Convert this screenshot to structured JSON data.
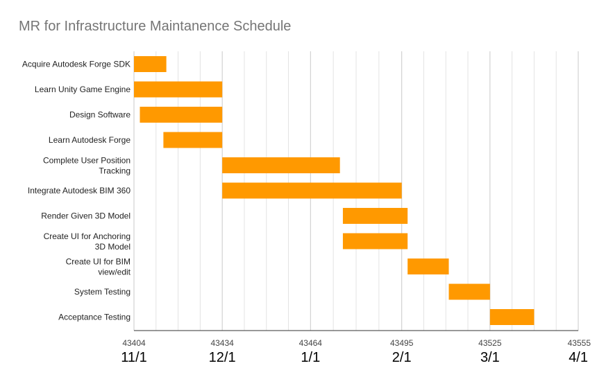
{
  "chart_data": {
    "type": "gantt",
    "title": "MR for Infrastructure Maintanence Schedule",
    "xlim": [
      43404,
      43555
    ],
    "major_ticks": [
      {
        "value": 43404,
        "serial_label": "43404",
        "date_label": "11/1"
      },
      {
        "value": 43434,
        "serial_label": "43434",
        "date_label": "12/1"
      },
      {
        "value": 43464,
        "serial_label": "43464",
        "date_label": "1/1"
      },
      {
        "value": 43495,
        "serial_label": "43495",
        "date_label": "2/1"
      },
      {
        "value": 43525,
        "serial_label": "43525",
        "date_label": "3/1"
      },
      {
        "value": 43555,
        "serial_label": "43555",
        "date_label": "4/1"
      }
    ],
    "minor_gridlines": [
      43411.5,
      43419,
      43426.5,
      43441.5,
      43449,
      43456.5,
      43471.75,
      43479.5,
      43487.25,
      43502.5,
      43510,
      43517.5,
      43532.5,
      43540,
      43547.5
    ],
    "bar_color": "#ff9900",
    "tasks": [
      {
        "name": "Acquire Autodesk Forge SDK",
        "start": 43404,
        "end": 43415
      },
      {
        "name": "Learn Unity Game Engine",
        "start": 43404,
        "end": 43434
      },
      {
        "name": "Design Software",
        "start": 43406,
        "end": 43434
      },
      {
        "name": "Learn Autodesk Forge",
        "start": 43414,
        "end": 43434
      },
      {
        "name": "Complete User Position Tracking",
        "start": 43434,
        "end": 43474
      },
      {
        "name": "Integrate Autodesk BIM 360",
        "start": 43434,
        "end": 43495
      },
      {
        "name": "Render Given 3D Model",
        "start": 43475,
        "end": 43497
      },
      {
        "name": "Create UI for Anchoring 3D Model",
        "start": 43475,
        "end": 43497
      },
      {
        "name": "Create UI for BIM view/edit",
        "start": 43497,
        "end": 43511
      },
      {
        "name": "System Testing",
        "start": 43511,
        "end": 43525
      },
      {
        "name": "Acceptance Testing",
        "start": 43525,
        "end": 43540
      }
    ]
  }
}
